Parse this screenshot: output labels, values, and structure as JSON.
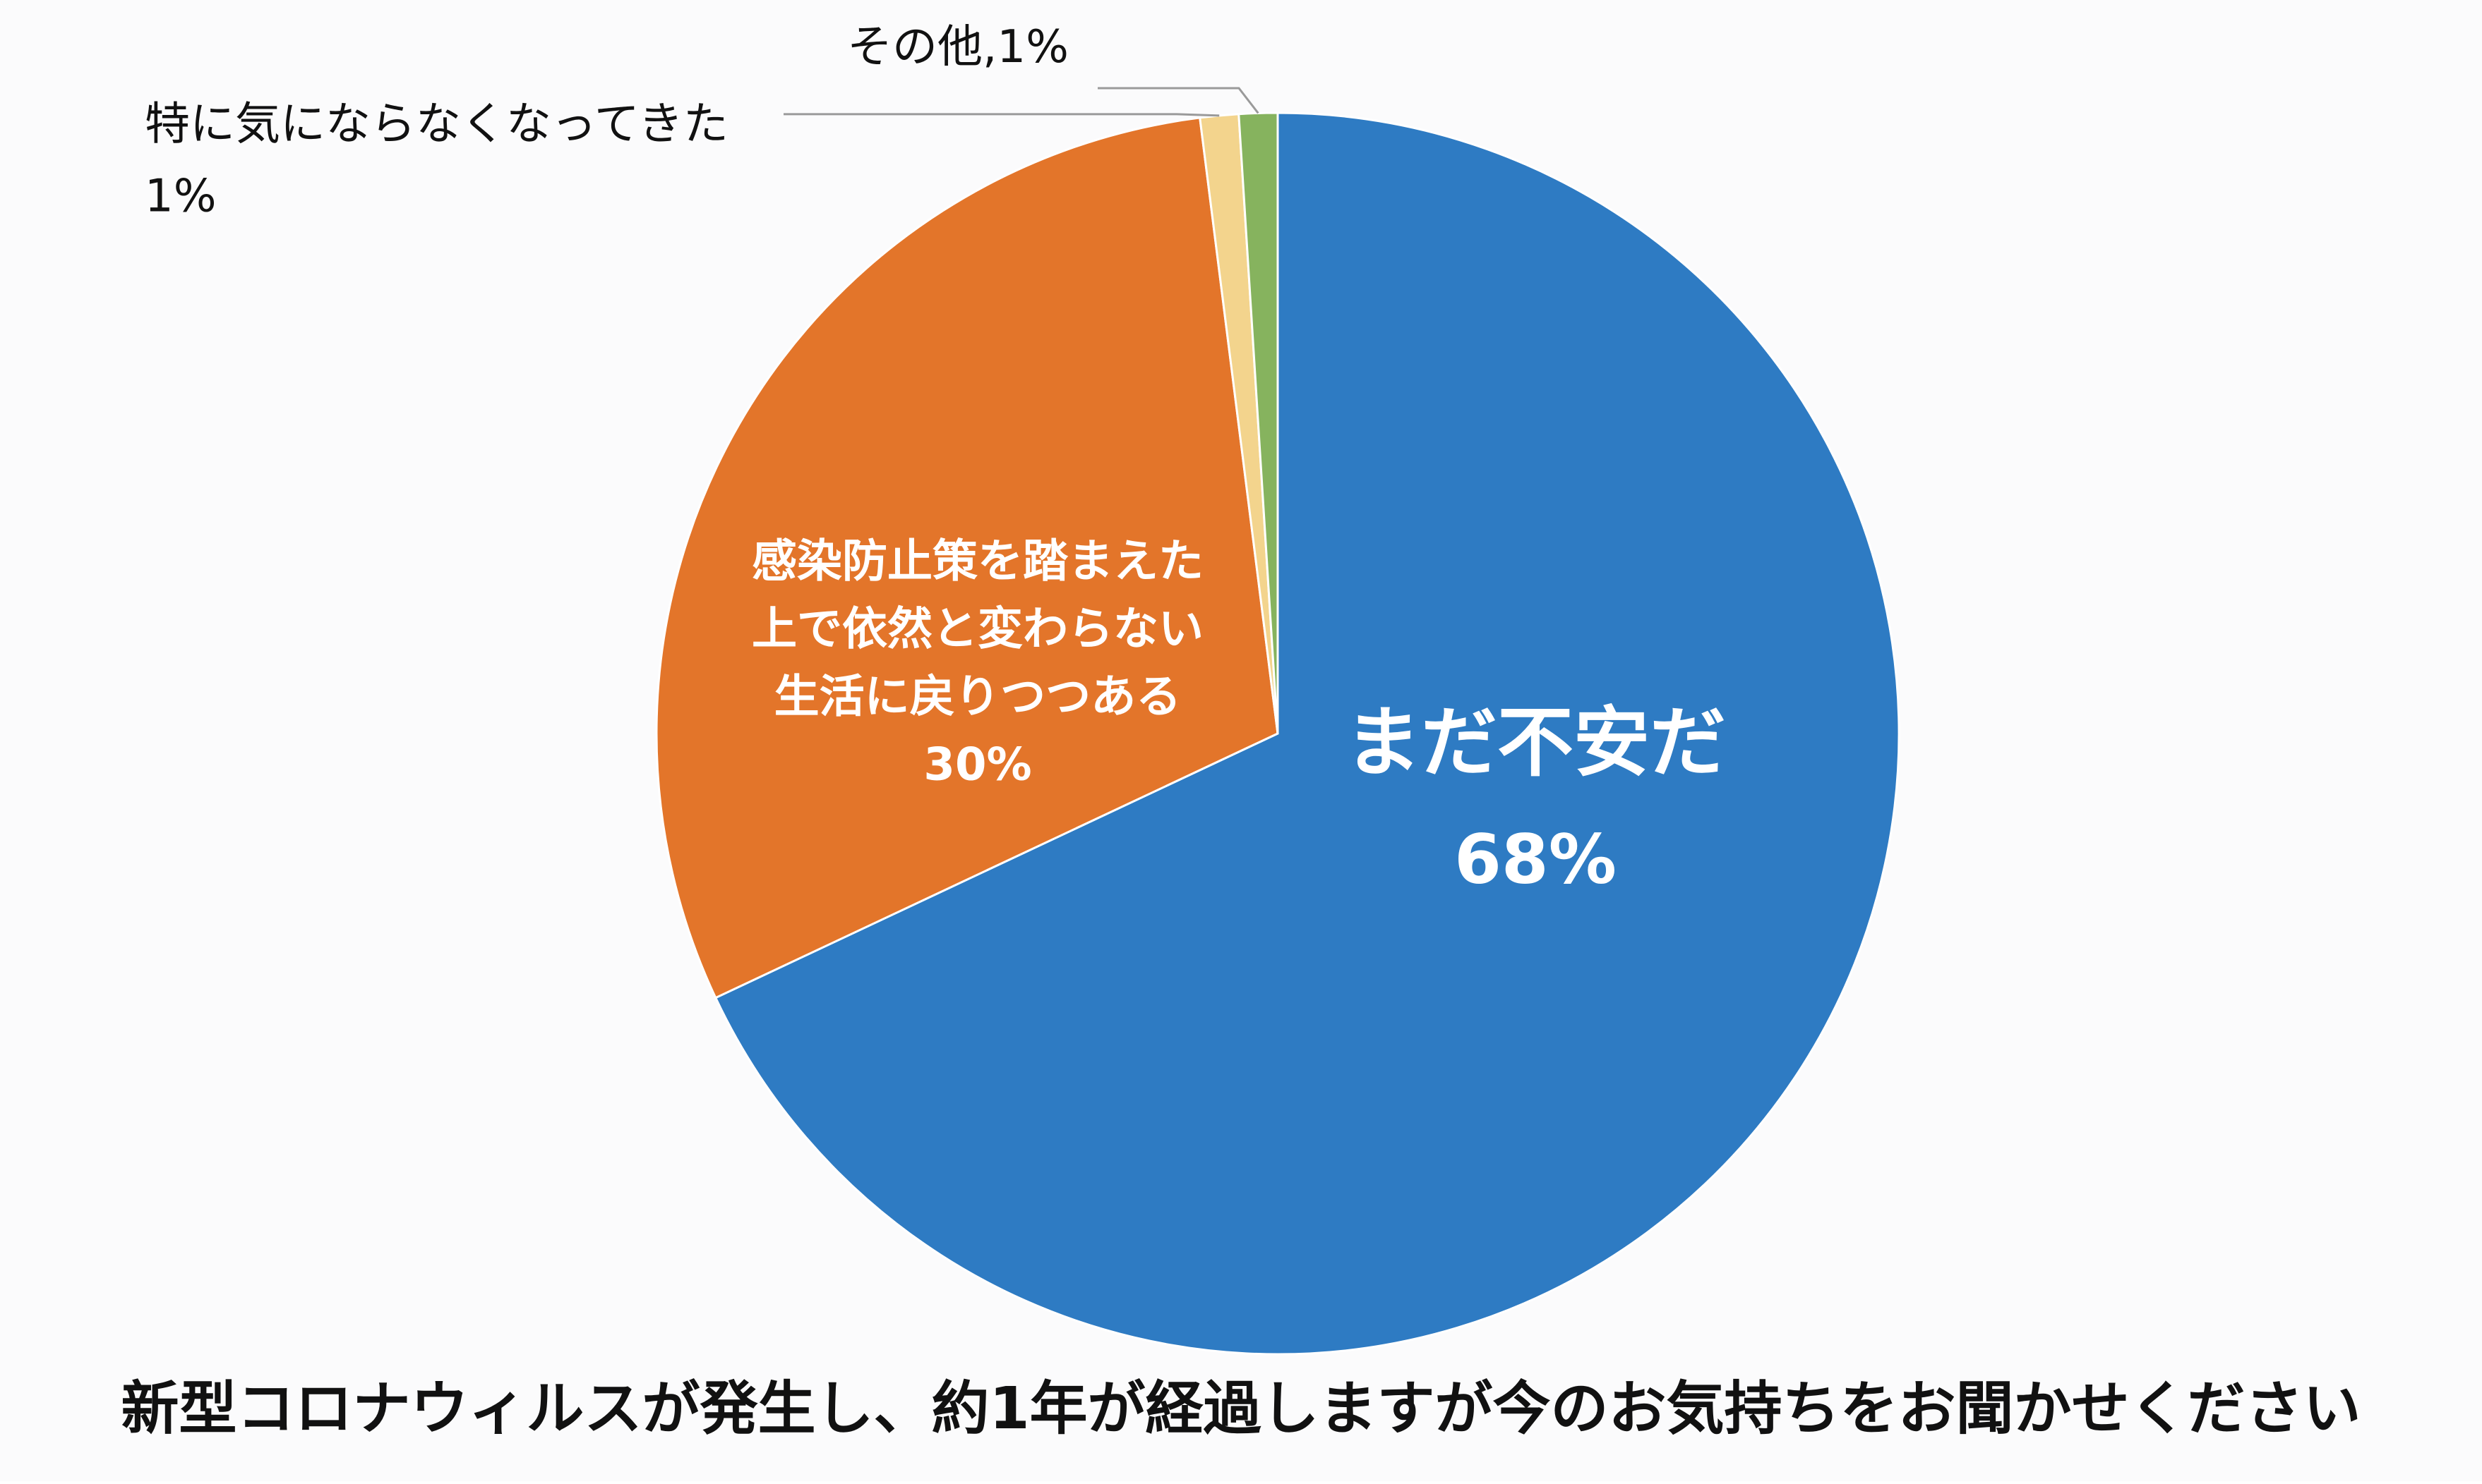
{
  "chart_data": {
    "type": "pie",
    "title": "新型コロナウィルスが発生し、約1年が経過しますが今のお気持ちをお聞かせください",
    "start_angle_deg": 0,
    "direction": "clockwise",
    "legend": "none",
    "slices": [
      {
        "label_lines": [
          "まだ不安だ"
        ],
        "value": 68,
        "value_label": "68%",
        "color": "#2e7bc3",
        "label_color": "#ffffff",
        "label_placement": "inside"
      },
      {
        "label_lines": [
          "感染防止策を踏まえた",
          "上で依然と変わらない",
          "生活に戻りつつある"
        ],
        "value": 30,
        "value_label": "30%",
        "color": "#e3752a",
        "label_color": "#ffffff",
        "label_placement": "inside"
      },
      {
        "label_lines": [
          "特に気にならなくなってきた"
        ],
        "value": 1,
        "value_label": "1%",
        "color": "#f3d48d",
        "label_color": "#111111",
        "label_placement": "outside-two-line"
      },
      {
        "label_lines": [
          "その他"
        ],
        "value": 1,
        "value_label": "1%",
        "color": "#86b35e",
        "label_color": "#111111",
        "label_placement": "outside-inline"
      }
    ]
  }
}
